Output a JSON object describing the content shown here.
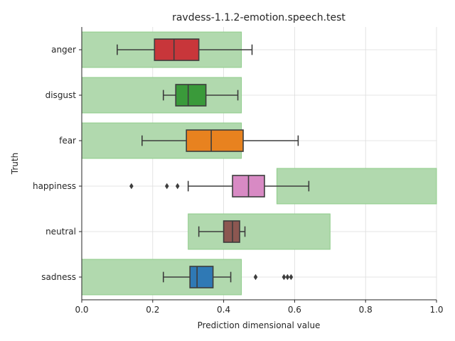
{
  "chart_data": {
    "type": "box",
    "title": "ravdess-1.1.2-emotion.speech.test",
    "xlabel": "Prediction dimensional value",
    "ylabel": "Truth",
    "xlim": [
      0.0,
      1.0
    ],
    "xticks": [
      "0.0",
      "0.2",
      "0.4",
      "0.6",
      "0.8",
      "1.0"
    ],
    "grid": true,
    "categories": [
      "anger",
      "disgust",
      "fear",
      "happiness",
      "neutral",
      "sadness"
    ],
    "expected_ranges": [
      {
        "category": "anger",
        "range": [
          0.0,
          0.45
        ]
      },
      {
        "category": "disgust",
        "range": [
          0.0,
          0.45
        ]
      },
      {
        "category": "fear",
        "range": [
          0.0,
          0.45
        ]
      },
      {
        "category": "happiness",
        "range": [
          0.55,
          1.0
        ]
      },
      {
        "category": "neutral",
        "range": [
          0.3,
          0.7
        ]
      },
      {
        "category": "sadness",
        "range": [
          0.0,
          0.45
        ]
      }
    ],
    "range_color": "#b1d9ae",
    "boxes": [
      {
        "category": "anger",
        "whisker_low": 0.1,
        "q1": 0.205,
        "median": 0.26,
        "q3": 0.33,
        "whisker_high": 0.48,
        "outliers": [],
        "color": "#c8363a"
      },
      {
        "category": "disgust",
        "whisker_low": 0.23,
        "q1": 0.265,
        "median": 0.3,
        "q3": 0.35,
        "whisker_high": 0.44,
        "outliers": [],
        "color": "#3a9a3a"
      },
      {
        "category": "fear",
        "whisker_low": 0.17,
        "q1": 0.295,
        "median": 0.365,
        "q3": 0.455,
        "whisker_high": 0.61,
        "outliers": [],
        "color": "#e8821f"
      },
      {
        "category": "happiness",
        "whisker_low": 0.3,
        "q1": 0.425,
        "median": 0.47,
        "q3": 0.515,
        "whisker_high": 0.64,
        "outliers": [
          0.14,
          0.24,
          0.27
        ],
        "color": "#d88ac4"
      },
      {
        "category": "neutral",
        "whisker_low": 0.33,
        "q1": 0.4,
        "median": 0.425,
        "q3": 0.445,
        "whisker_high": 0.46,
        "outliers": [],
        "color": "#8c5751"
      },
      {
        "category": "sadness",
        "whisker_low": 0.23,
        "q1": 0.305,
        "median": 0.325,
        "q3": 0.37,
        "whisker_high": 0.42,
        "outliers": [
          0.49,
          0.57,
          0.58,
          0.59
        ],
        "color": "#2f79b5"
      }
    ]
  }
}
